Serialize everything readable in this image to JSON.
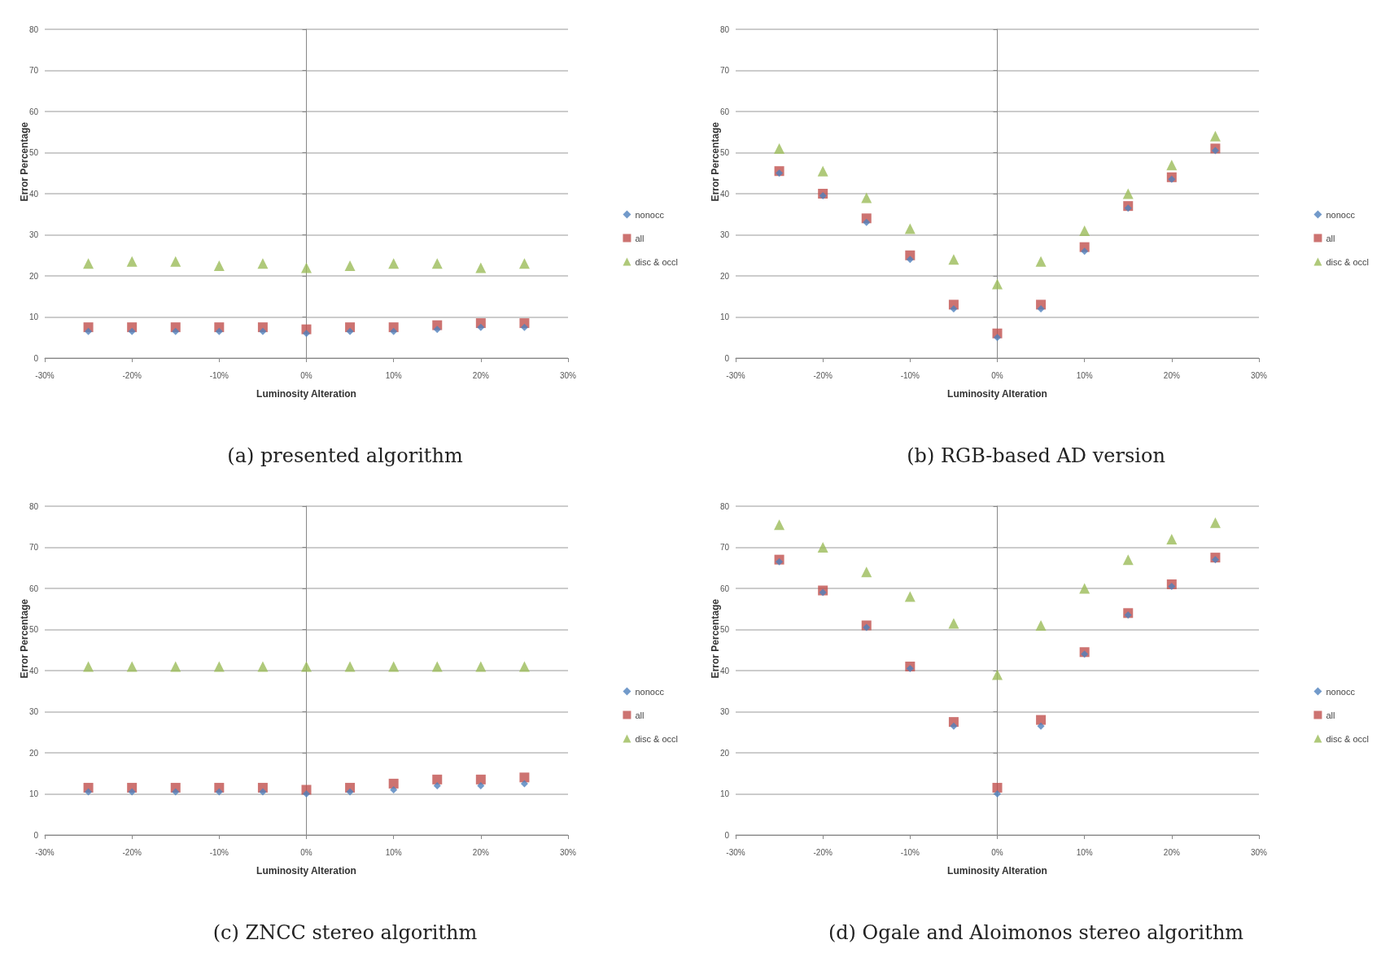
{
  "chart_data": [
    {
      "type": "scatter",
      "title": "(a) presented algorithm",
      "xlabel": "Luminosity Alteration",
      "ylabel": "Error Percentage",
      "legend": "right",
      "grid": "y",
      "x": [
        -25,
        -20,
        -15,
        -10,
        -5,
        0,
        5,
        10,
        15,
        20,
        25
      ],
      "xlim": [
        -30,
        30
      ],
      "xticks": [
        {
          "value": -30,
          "label": "-30%"
        },
        {
          "value": -20,
          "label": "-20%"
        },
        {
          "value": -10,
          "label": "-10%"
        },
        {
          "value": 0,
          "label": "0%"
        },
        {
          "value": 10,
          "label": "10%"
        },
        {
          "value": 20,
          "label": "20%"
        },
        {
          "value": 30,
          "label": "30%"
        }
      ],
      "ylim": [
        0,
        80
      ],
      "yticks": [
        0,
        10,
        20,
        30,
        40,
        50,
        60,
        70,
        80
      ],
      "series": [
        {
          "name": "nonocc",
          "color": "#4f81bd",
          "marker": "diamond",
          "values": [
            6.5,
            6.5,
            6.5,
            6.5,
            6.5,
            6,
            6.5,
            6.5,
            7,
            7.5,
            7.5
          ]
        },
        {
          "name": "all",
          "color": "#c0504d",
          "marker": "square",
          "values": [
            7.5,
            7.5,
            7.5,
            7.5,
            7.5,
            7,
            7.5,
            7.5,
            8,
            8.5,
            8.5
          ]
        },
        {
          "name": "disc & occl",
          "color": "#9bbb59",
          "marker": "triangle",
          "values": [
            23,
            23.5,
            23.5,
            22.5,
            23,
            22,
            22.5,
            23,
            23,
            22,
            23
          ]
        }
      ]
    },
    {
      "type": "scatter",
      "title": "(b) RGB-based AD version",
      "xlabel": "Luminosity Alteration",
      "ylabel": "Error Percentage",
      "legend": "right",
      "grid": "y",
      "x": [
        -25,
        -20,
        -15,
        -10,
        -5,
        0,
        5,
        10,
        15,
        20,
        25
      ],
      "xlim": [
        -30,
        30
      ],
      "xticks": [
        {
          "value": -30,
          "label": "-30%"
        },
        {
          "value": -20,
          "label": "-20%"
        },
        {
          "value": -10,
          "label": "-10%"
        },
        {
          "value": 0,
          "label": "0%"
        },
        {
          "value": 10,
          "label": "10%"
        },
        {
          "value": 20,
          "label": "20%"
        },
        {
          "value": 30,
          "label": "30%"
        }
      ],
      "ylim": [
        0,
        80
      ],
      "yticks": [
        0,
        10,
        20,
        30,
        40,
        50,
        60,
        70,
        80
      ],
      "series": [
        {
          "name": "nonocc",
          "color": "#4f81bd",
          "marker": "diamond",
          "values": [
            45,
            39.5,
            33,
            24,
            12,
            5,
            12,
            26,
            36.5,
            43.5,
            50.5
          ]
        },
        {
          "name": "all",
          "color": "#c0504d",
          "marker": "square",
          "values": [
            45.5,
            40,
            34,
            25,
            13,
            6,
            13,
            27,
            37,
            44,
            51
          ]
        },
        {
          "name": "disc & occl",
          "color": "#9bbb59",
          "marker": "triangle",
          "values": [
            51,
            45.5,
            39,
            31.5,
            24,
            18,
            23.5,
            31,
            40,
            47,
            54
          ]
        }
      ]
    },
    {
      "type": "scatter",
      "title": "(c) ZNCC stereo algorithm",
      "xlabel": "Luminosity Alteration",
      "ylabel": "Error Percentage",
      "legend": "right",
      "grid": "y",
      "x": [
        -25,
        -20,
        -15,
        -10,
        -5,
        0,
        5,
        10,
        15,
        20,
        25
      ],
      "xlim": [
        -30,
        30
      ],
      "xticks": [
        {
          "value": -30,
          "label": "-30%"
        },
        {
          "value": -20,
          "label": "-20%"
        },
        {
          "value": -10,
          "label": "-10%"
        },
        {
          "value": 0,
          "label": "0%"
        },
        {
          "value": 10,
          "label": "10%"
        },
        {
          "value": 20,
          "label": "20%"
        },
        {
          "value": 30,
          "label": "30%"
        }
      ],
      "ylim": [
        0,
        80
      ],
      "yticks": [
        0,
        10,
        20,
        30,
        40,
        50,
        60,
        70,
        80
      ],
      "series": [
        {
          "name": "nonocc",
          "color": "#4f81bd",
          "marker": "diamond",
          "values": [
            10.5,
            10.5,
            10.5,
            10.5,
            10.5,
            10,
            10.5,
            11,
            12,
            12,
            12.5
          ]
        },
        {
          "name": "all",
          "color": "#c0504d",
          "marker": "square",
          "values": [
            11.5,
            11.5,
            11.5,
            11.5,
            11.5,
            11,
            11.5,
            12.5,
            13.5,
            13.5,
            14
          ]
        },
        {
          "name": "disc & occl",
          "color": "#9bbb59",
          "marker": "triangle",
          "values": [
            41,
            41,
            41,
            41,
            41,
            41,
            41,
            41,
            41,
            41,
            41
          ]
        }
      ]
    },
    {
      "type": "scatter",
      "title": "(d) Ogale and Aloimonos stereo algorithm",
      "xlabel": "Luminosity Alteration",
      "ylabel": "Error Percentage",
      "legend": "right",
      "grid": "y",
      "x": [
        -25,
        -20,
        -15,
        -10,
        -5,
        0,
        5,
        10,
        15,
        20,
        25
      ],
      "xlim": [
        -30,
        30
      ],
      "xticks": [
        {
          "value": -30,
          "label": "-30%"
        },
        {
          "value": -20,
          "label": "-20%"
        },
        {
          "value": -10,
          "label": "-10%"
        },
        {
          "value": 0,
          "label": "0%"
        },
        {
          "value": 10,
          "label": "10%"
        },
        {
          "value": 20,
          "label": "20%"
        },
        {
          "value": 30,
          "label": "30%"
        }
      ],
      "ylim": [
        0,
        80
      ],
      "yticks": [
        0,
        10,
        20,
        30,
        40,
        50,
        60,
        70,
        80
      ],
      "series": [
        {
          "name": "nonocc",
          "color": "#4f81bd",
          "marker": "diamond",
          "values": [
            66.5,
            59,
            50.5,
            40.5,
            26.5,
            10,
            26.5,
            44,
            53.5,
            60.5,
            67
          ]
        },
        {
          "name": "all",
          "color": "#c0504d",
          "marker": "square",
          "values": [
            67,
            59.5,
            51,
            41,
            27.5,
            11.5,
            28,
            44.5,
            54,
            61,
            67.5
          ]
        },
        {
          "name": "disc & occl",
          "color": "#9bbb59",
          "marker": "triangle",
          "values": [
            75.5,
            70,
            64,
            58,
            51.5,
            39,
            51,
            60,
            67,
            72,
            76
          ]
        }
      ]
    }
  ]
}
